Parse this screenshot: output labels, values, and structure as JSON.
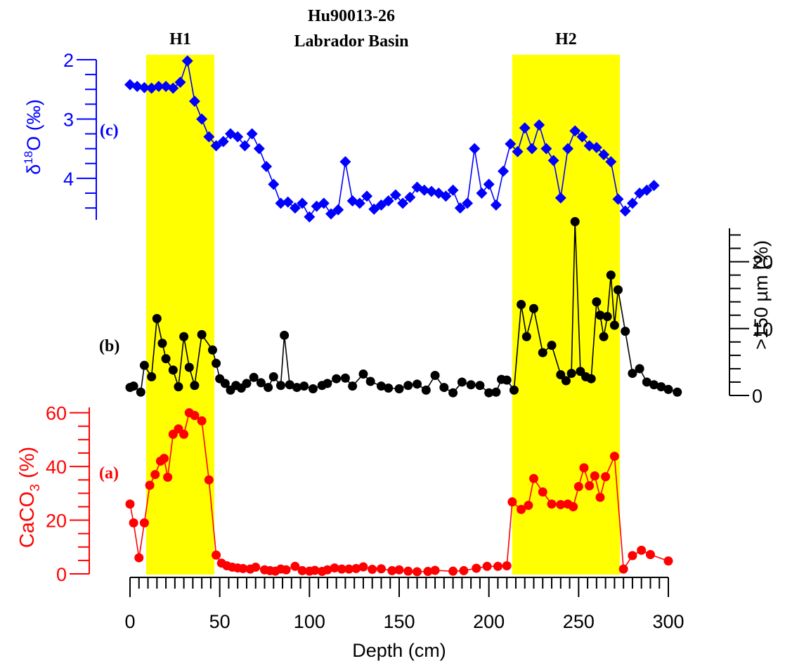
{
  "chart_data": {
    "type": "line",
    "title": "Hu90013-26",
    "subtitle": "Labrador Basin",
    "xlabel": "Depth (cm)",
    "xlim": [
      0,
      300
    ],
    "x_ticks": [
      "0",
      "50",
      "100",
      "150",
      "200",
      "250",
      "300"
    ],
    "shaded_intervals": [
      {
        "label": "H1",
        "from": 9,
        "to": 47,
        "color": "#ffff00"
      },
      {
        "label": "H2",
        "from": 213,
        "to": 273,
        "color": "#ffff00"
      }
    ],
    "series": [
      {
        "panel": "(c)",
        "ylabel": "δ18O (‰)",
        "ylabel_base": "δ",
        "ylabel_sup": "18",
        "ylabel_rest": "O (‰)",
        "color": "#0000ff",
        "marker": "diamond",
        "ylim": [
          2,
          4.7
        ],
        "y_inverted": true,
        "y_ticks": [
          "2",
          "3",
          "4"
        ],
        "x": [
          0,
          4,
          8,
          12,
          16,
          20,
          24,
          28,
          32,
          36,
          40,
          44,
          48,
          52,
          56,
          60,
          64,
          68,
          72,
          76,
          80,
          84,
          88,
          92,
          96,
          100,
          104,
          108,
          112,
          116,
          120,
          124,
          128,
          132,
          136,
          140,
          144,
          148,
          152,
          156,
          160,
          164,
          168,
          172,
          176,
          180,
          184,
          188,
          192,
          196,
          200,
          204,
          208,
          212,
          216,
          220,
          224,
          228,
          232,
          236,
          240,
          244,
          248,
          252,
          256,
          260,
          264,
          268,
          272,
          276,
          280,
          284,
          288,
          292
        ],
        "y": [
          2.42,
          2.45,
          2.47,
          2.48,
          2.45,
          2.45,
          2.48,
          2.38,
          2.02,
          2.7,
          3.0,
          3.3,
          3.45,
          3.38,
          3.25,
          3.3,
          3.45,
          3.25,
          3.5,
          3.8,
          4.1,
          4.42,
          4.4,
          4.5,
          4.42,
          4.65,
          4.47,
          4.42,
          4.6,
          4.53,
          3.72,
          4.38,
          4.42,
          4.3,
          4.52,
          4.45,
          4.38,
          4.28,
          4.42,
          4.32,
          4.15,
          4.2,
          4.22,
          4.25,
          4.3,
          4.2,
          4.5,
          4.42,
          3.5,
          4.25,
          4.1,
          4.45,
          3.88,
          3.42,
          3.55,
          3.15,
          3.5,
          3.1,
          3.5,
          3.7,
          4.33,
          3.5,
          3.2,
          3.3,
          3.45,
          3.48,
          3.6,
          3.72,
          4.35,
          4.55,
          4.42,
          4.25,
          4.2,
          4.12
        ]
      },
      {
        "panel": "(b)",
        "ylabel": ">150 µm (%)",
        "color": "#000000",
        "marker": "circle",
        "ylim": [
          0,
          25
        ],
        "y_ticks": [
          "0",
          "10",
          "20"
        ],
        "x": [
          0,
          2,
          6,
          8,
          12,
          15,
          18,
          20,
          24,
          27,
          30,
          33,
          36,
          40,
          46,
          48,
          50,
          53,
          56,
          59,
          62,
          65,
          69,
          73,
          77,
          80,
          84,
          86,
          89,
          93,
          97,
          102,
          107,
          110,
          115,
          120,
          124,
          130,
          134,
          140,
          144,
          150,
          155,
          160,
          165,
          170,
          175,
          180,
          185,
          190,
          195,
          200,
          204,
          207,
          210,
          214,
          218,
          221,
          225,
          230,
          235,
          240,
          243,
          246,
          248,
          251,
          254,
          257,
          260,
          262,
          264,
          266,
          268,
          270,
          272,
          276,
          280,
          284,
          288,
          292,
          296,
          300,
          305
        ],
        "y": [
          1.2,
          1.4,
          0.5,
          4.5,
          2.8,
          11.5,
          7.8,
          5.5,
          3.8,
          1.3,
          8.8,
          4.2,
          1.5,
          9.1,
          6.8,
          4.8,
          2.5,
          1.8,
          0.8,
          1.5,
          1.1,
          1.8,
          2.7,
          1.9,
          1.2,
          2.8,
          1.5,
          9.0,
          1.6,
          1.2,
          1.4,
          1.0,
          1.5,
          1.8,
          2.5,
          2.6,
          1.4,
          3.2,
          2.1,
          1.4,
          1.1,
          1.0,
          1.5,
          1.7,
          0.8,
          3.0,
          1.2,
          0.4,
          2.0,
          1.6,
          1.5,
          0.4,
          0.5,
          2.4,
          2.3,
          0.8,
          13.6,
          8.8,
          13.0,
          6.4,
          7.5,
          3.1,
          2.2,
          3.3,
          26.0,
          3.6,
          2.8,
          2.5,
          14.0,
          12.0,
          8.8,
          11.8,
          18.0,
          10.5,
          15.8,
          9.6,
          3.3,
          4.0,
          2.0,
          1.6,
          1.3,
          0.9,
          0.5
        ]
      },
      {
        "panel": "(a)",
        "ylabel": "CaCO3 (%)",
        "ylabel_base": "CaCO",
        "ylabel_sub": "3",
        "ylabel_rest": " (%)",
        "color": "#ff0000",
        "marker": "circle",
        "ylim": [
          0,
          62
        ],
        "y_ticks": [
          "0",
          "20",
          "40",
          "60"
        ],
        "x": [
          0,
          2,
          5,
          8,
          11,
          14,
          17,
          19,
          21,
          24,
          27,
          30,
          33,
          36,
          40,
          44,
          48,
          51,
          54,
          57,
          60,
          63,
          67,
          70,
          75,
          78,
          81,
          84,
          87,
          92,
          96,
          100,
          103,
          107,
          110,
          114,
          118,
          122,
          126,
          130,
          135,
          140,
          146,
          150,
          155,
          160,
          166,
          170,
          180,
          186,
          193,
          199,
          205,
          210,
          213,
          218,
          222,
          225,
          230,
          235,
          240,
          244,
          247,
          250,
          253,
          256,
          259,
          262,
          265,
          270,
          275,
          280,
          285,
          290,
          300
        ],
        "y": [
          26,
          19,
          6,
          19,
          33,
          37,
          42,
          43,
          36,
          52,
          54,
          52,
          60,
          59,
          57,
          35,
          7,
          4,
          3,
          2.5,
          2.2,
          2,
          1.8,
          2.5,
          1.5,
          1.2,
          1,
          1.8,
          1.5,
          2.8,
          1.2,
          1,
          1.3,
          0.9,
          1.5,
          2.2,
          1.8,
          1.8,
          2.0,
          2.6,
          1.7,
          1.9,
          1.2,
          1.5,
          1.0,
          0.8,
          0.9,
          1.3,
          1.0,
          1.2,
          2.1,
          2.8,
          2.8,
          3.0,
          26.8,
          24,
          25.5,
          35.5,
          30.5,
          26,
          25.8,
          26,
          25,
          32.5,
          39.5,
          32.8,
          36.5,
          28.5,
          36.2,
          43.8,
          1.8,
          6.8,
          8.8,
          7.2,
          4.8
        ]
      }
    ]
  }
}
